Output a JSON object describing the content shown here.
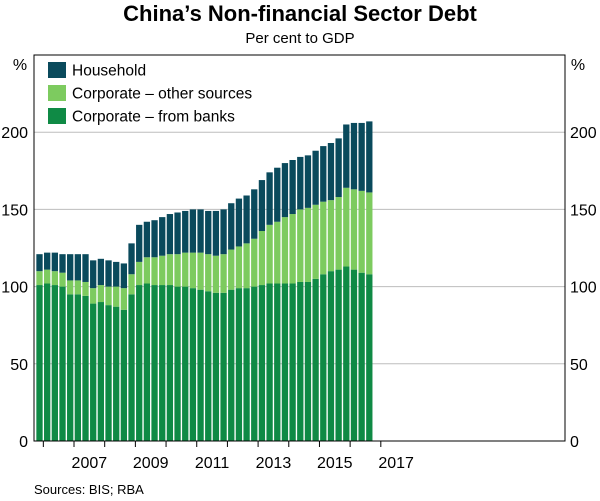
{
  "chart_data": {
    "type": "bar",
    "stacked": true,
    "title": "China’s Non-financial Sector Debt",
    "subtitle": "Per cent to GDP",
    "ylabel_left": "%",
    "ylabel_right": "%",
    "ylim": [
      0,
      250
    ],
    "yticks": [
      0,
      50,
      100,
      150,
      200
    ],
    "grid": true,
    "legend_position": "top-left",
    "xtick_labels": [
      "2007",
      "2009",
      "2011",
      "2013",
      "2015",
      "2017"
    ],
    "x": [
      "2005-Q4",
      "2006-Q1",
      "2006-Q2",
      "2006-Q3",
      "2006-Q4",
      "2007-Q1",
      "2007-Q2",
      "2007-Q3",
      "2007-Q4",
      "2008-Q1",
      "2008-Q2",
      "2008-Q3",
      "2008-Q4",
      "2009-Q1",
      "2009-Q2",
      "2009-Q3",
      "2009-Q4",
      "2010-Q1",
      "2010-Q2",
      "2010-Q3",
      "2010-Q4",
      "2011-Q1",
      "2011-Q2",
      "2011-Q3",
      "2011-Q4",
      "2012-Q1",
      "2012-Q2",
      "2012-Q3",
      "2012-Q4",
      "2013-Q1",
      "2013-Q2",
      "2013-Q3",
      "2013-Q4",
      "2014-Q1",
      "2014-Q2",
      "2014-Q3",
      "2014-Q4",
      "2015-Q1",
      "2015-Q2",
      "2015-Q3",
      "2015-Q4",
      "2016-Q1",
      "2016-Q2",
      "2016-Q3"
    ],
    "series": [
      {
        "name": "Corporate – from banks",
        "color": "#0f8a45",
        "values": [
          101,
          102,
          101,
          100,
          95,
          95,
          94,
          89,
          90,
          88,
          87,
          85,
          95,
          101,
          102,
          101,
          101,
          101,
          100,
          100,
          99,
          98,
          97,
          96,
          96,
          98,
          99,
          99,
          100,
          101,
          102,
          102,
          102,
          102,
          103,
          103,
          105,
          108,
          110,
          111,
          113,
          111,
          109,
          108
        ]
      },
      {
        "name": "Corporate – other sources",
        "color": "#7dcb5f",
        "values": [
          9,
          9,
          9,
          9,
          9,
          9,
          9,
          10,
          11,
          12,
          13,
          14,
          13,
          15,
          17,
          18,
          19,
          20,
          21,
          22,
          23,
          24,
          24,
          24,
          25,
          26,
          27,
          29,
          31,
          35,
          38,
          40,
          43,
          45,
          47,
          48,
          48,
          47,
          46,
          47,
          51,
          52,
          53,
          53
        ]
      },
      {
        "name": "Household",
        "color": "#0a4a5c",
        "values": [
          11,
          11,
          12,
          12,
          17,
          17,
          18,
          18,
          17,
          17,
          16,
          16,
          20,
          24,
          23,
          24,
          25,
          26,
          27,
          27,
          28,
          28,
          28,
          29,
          29,
          30,
          31,
          31,
          32,
          33,
          34,
          35,
          35,
          35,
          34,
          34,
          35,
          36,
          37,
          38,
          41,
          43,
          44,
          46
        ]
      }
    ],
    "source_note": "Sources: BIS; RBA"
  }
}
